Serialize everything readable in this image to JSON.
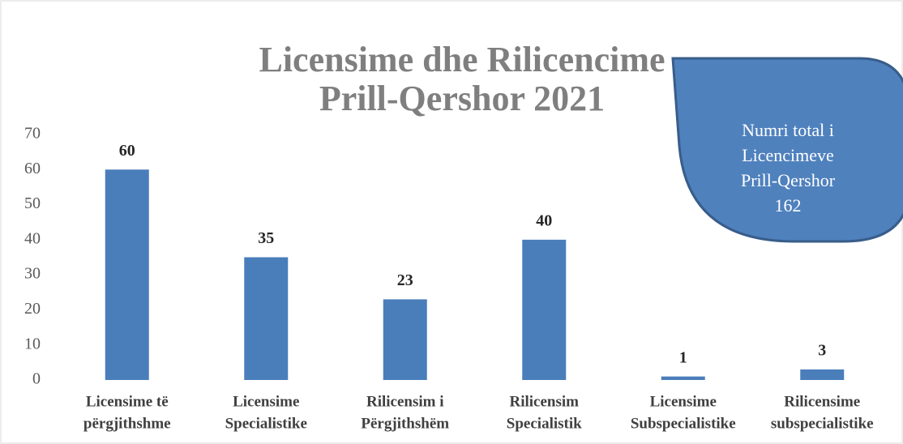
{
  "chart_data": {
    "type": "bar",
    "title": [
      "Licensime dhe Rilicencime",
      "Prill-Qershor 2021"
    ],
    "categories": [
      [
        "Licensime të",
        "përgjithshme"
      ],
      [
        "Licensime",
        "Specialistike"
      ],
      [
        "Rilicensim i",
        "Përgjithshëm"
      ],
      [
        "Rilicensim",
        "Specialistik"
      ],
      [
        "Licensime",
        "Subspecialistike"
      ],
      [
        "Rilicensime",
        "subspecialistike"
      ]
    ],
    "values": [
      60,
      35,
      23,
      40,
      1,
      3
    ],
    "color": "#4a7ebb",
    "ylim": [
      0,
      70
    ],
    "yticks": [
      0,
      10,
      20,
      30,
      40,
      50,
      60,
      70
    ],
    "grid": false,
    "annotation": [
      "Numri total i",
      "Licencimeve",
      "Prill-Qershor",
      "162"
    ]
  }
}
